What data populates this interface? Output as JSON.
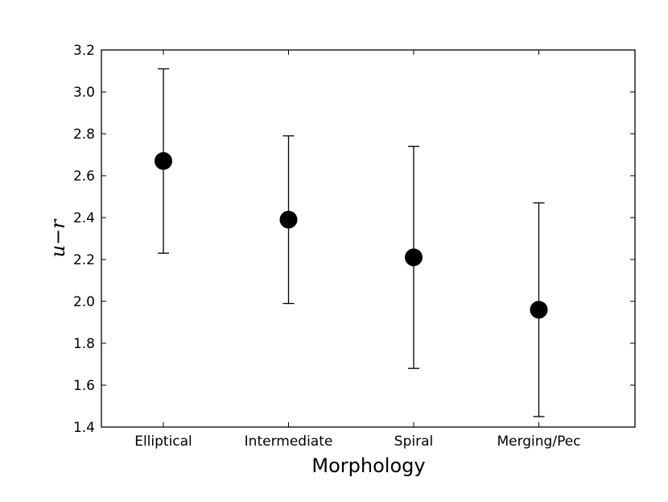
{
  "chart_data": {
    "type": "scatter",
    "title": "",
    "xlabel": "Morphology",
    "ylabel": "u−r",
    "categories": [
      "Elliptical",
      "Intermediate",
      "Spiral",
      "Merging/Pec"
    ],
    "values": [
      2.67,
      2.39,
      2.21,
      1.96
    ],
    "error_low": [
      2.23,
      1.99,
      1.68,
      1.45
    ],
    "error_high": [
      3.11,
      2.79,
      2.74,
      2.47
    ],
    "ylim": [
      1.4,
      3.2
    ],
    "yticks": [
      "1.4",
      "1.6",
      "1.8",
      "2.0",
      "2.2",
      "2.4",
      "2.6",
      "2.8",
      "3.0",
      "3.2"
    ],
    "grid": false,
    "marker_color": "#000000"
  }
}
